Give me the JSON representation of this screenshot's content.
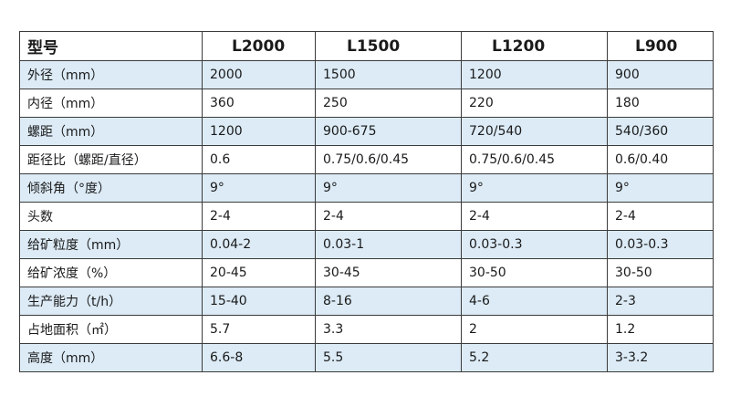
{
  "header": {
    "label": "型号",
    "models": [
      "L2000",
      "L1500",
      "L1200",
      "L900"
    ]
  },
  "rows": [
    {
      "label": "外径（mm）",
      "values": [
        "2000",
        "1500",
        "1200",
        "900"
      ]
    },
    {
      "label": "内径（mm）",
      "values": [
        "360",
        "250",
        "220",
        "180"
      ]
    },
    {
      "label": "螺距（mm）",
      "values": [
        "1200",
        "900-675",
        "720/540",
        "540/360"
      ]
    },
    {
      "label": "距径比（螺距/直径）",
      "values": [
        "0.6",
        "0.75/0.6/0.45",
        "0.75/0.6/0.45",
        "0.6/0.40"
      ]
    },
    {
      "label": "倾斜角（°度）",
      "values": [
        "9°",
        "9°",
        "9°",
        "9°"
      ]
    },
    {
      "label": "头数",
      "values": [
        "2-4",
        "2-4",
        "2-4",
        "2-4"
      ]
    },
    {
      "label": "给矿粒度（mm）",
      "values": [
        "0.04-2",
        "0.03-1",
        "0.03-0.3",
        "0.03-0.3"
      ]
    },
    {
      "label": "给矿浓度（%）",
      "values": [
        "20-45",
        "30-45",
        "30-50",
        "30-50"
      ]
    },
    {
      "label": "生产能力（t/h）",
      "values": [
        "15-40",
        "8-16",
        "4-6",
        "2-3"
      ]
    },
    {
      "label": "占地面积（㎡）",
      "values": [
        "5.7",
        "3.3",
        "2",
        "1.2"
      ]
    },
    {
      "label": "高度（mm）",
      "values": [
        "6.6-8",
        "5.5",
        "5.2",
        "3-3.2"
      ]
    }
  ],
  "colors": {
    "row_shade": "#dcebf6",
    "border": "#3b3b3b"
  }
}
